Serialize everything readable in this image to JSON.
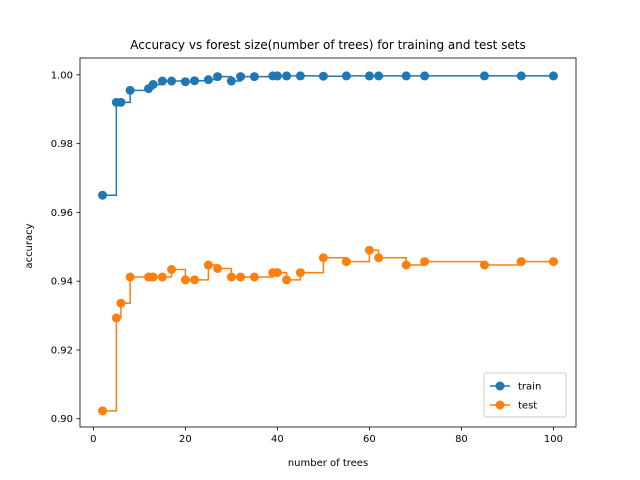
{
  "chart_data": {
    "type": "line",
    "title": "Accuracy vs forest size(number of trees) for training and test sets",
    "xlabel": "number of trees",
    "ylabel": "accuracy",
    "xlim": [
      -2.9,
      104.9
    ],
    "ylim": [
      0.8976,
      1.0049
    ],
    "xticks": [
      0,
      20,
      40,
      60,
      80,
      100
    ],
    "xtick_labels": [
      "0",
      "20",
      "40",
      "60",
      "80",
      "100"
    ],
    "yticks": [
      0.9,
      0.92,
      0.94,
      0.96,
      0.98,
      1.0
    ],
    "ytick_labels": [
      "0.90",
      "0.92",
      "0.94",
      "0.96",
      "0.98",
      "1.00"
    ],
    "grid": false,
    "legend_position": "lower-right",
    "line_style": "steps-post",
    "x": [
      2,
      5,
      6,
      8,
      12,
      13,
      15,
      17,
      20,
      22,
      25,
      27,
      30,
      32,
      35,
      39,
      40,
      42,
      45,
      50,
      55,
      60,
      62,
      68,
      72,
      85,
      93,
      100
    ],
    "series": [
      {
        "name": "train",
        "color": "#1f77b4",
        "values": [
          0.965,
          0.992,
          0.992,
          0.9955,
          0.996,
          0.9972,
          0.9982,
          0.9982,
          0.998,
          0.9983,
          0.9986,
          0.9995,
          0.9982,
          0.9995,
          0.9995,
          0.9997,
          0.9997,
          0.9997,
          0.9997,
          0.9996,
          0.9997,
          0.9997,
          0.9997,
          0.9997,
          0.9997,
          0.9997,
          0.9997,
          0.9997
        ]
      },
      {
        "name": "test",
        "color": "#ff7f0e",
        "values": [
          0.9023,
          0.9293,
          0.9336,
          0.9412,
          0.9412,
          0.9412,
          0.9412,
          0.9434,
          0.9404,
          0.9404,
          0.9447,
          0.9437,
          0.9412,
          0.9412,
          0.9412,
          0.9425,
          0.9425,
          0.9404,
          0.9425,
          0.9468,
          0.9457,
          0.949,
          0.9468,
          0.9447,
          0.9457,
          0.9447,
          0.9457,
          0.9457
        ]
      }
    ]
  }
}
